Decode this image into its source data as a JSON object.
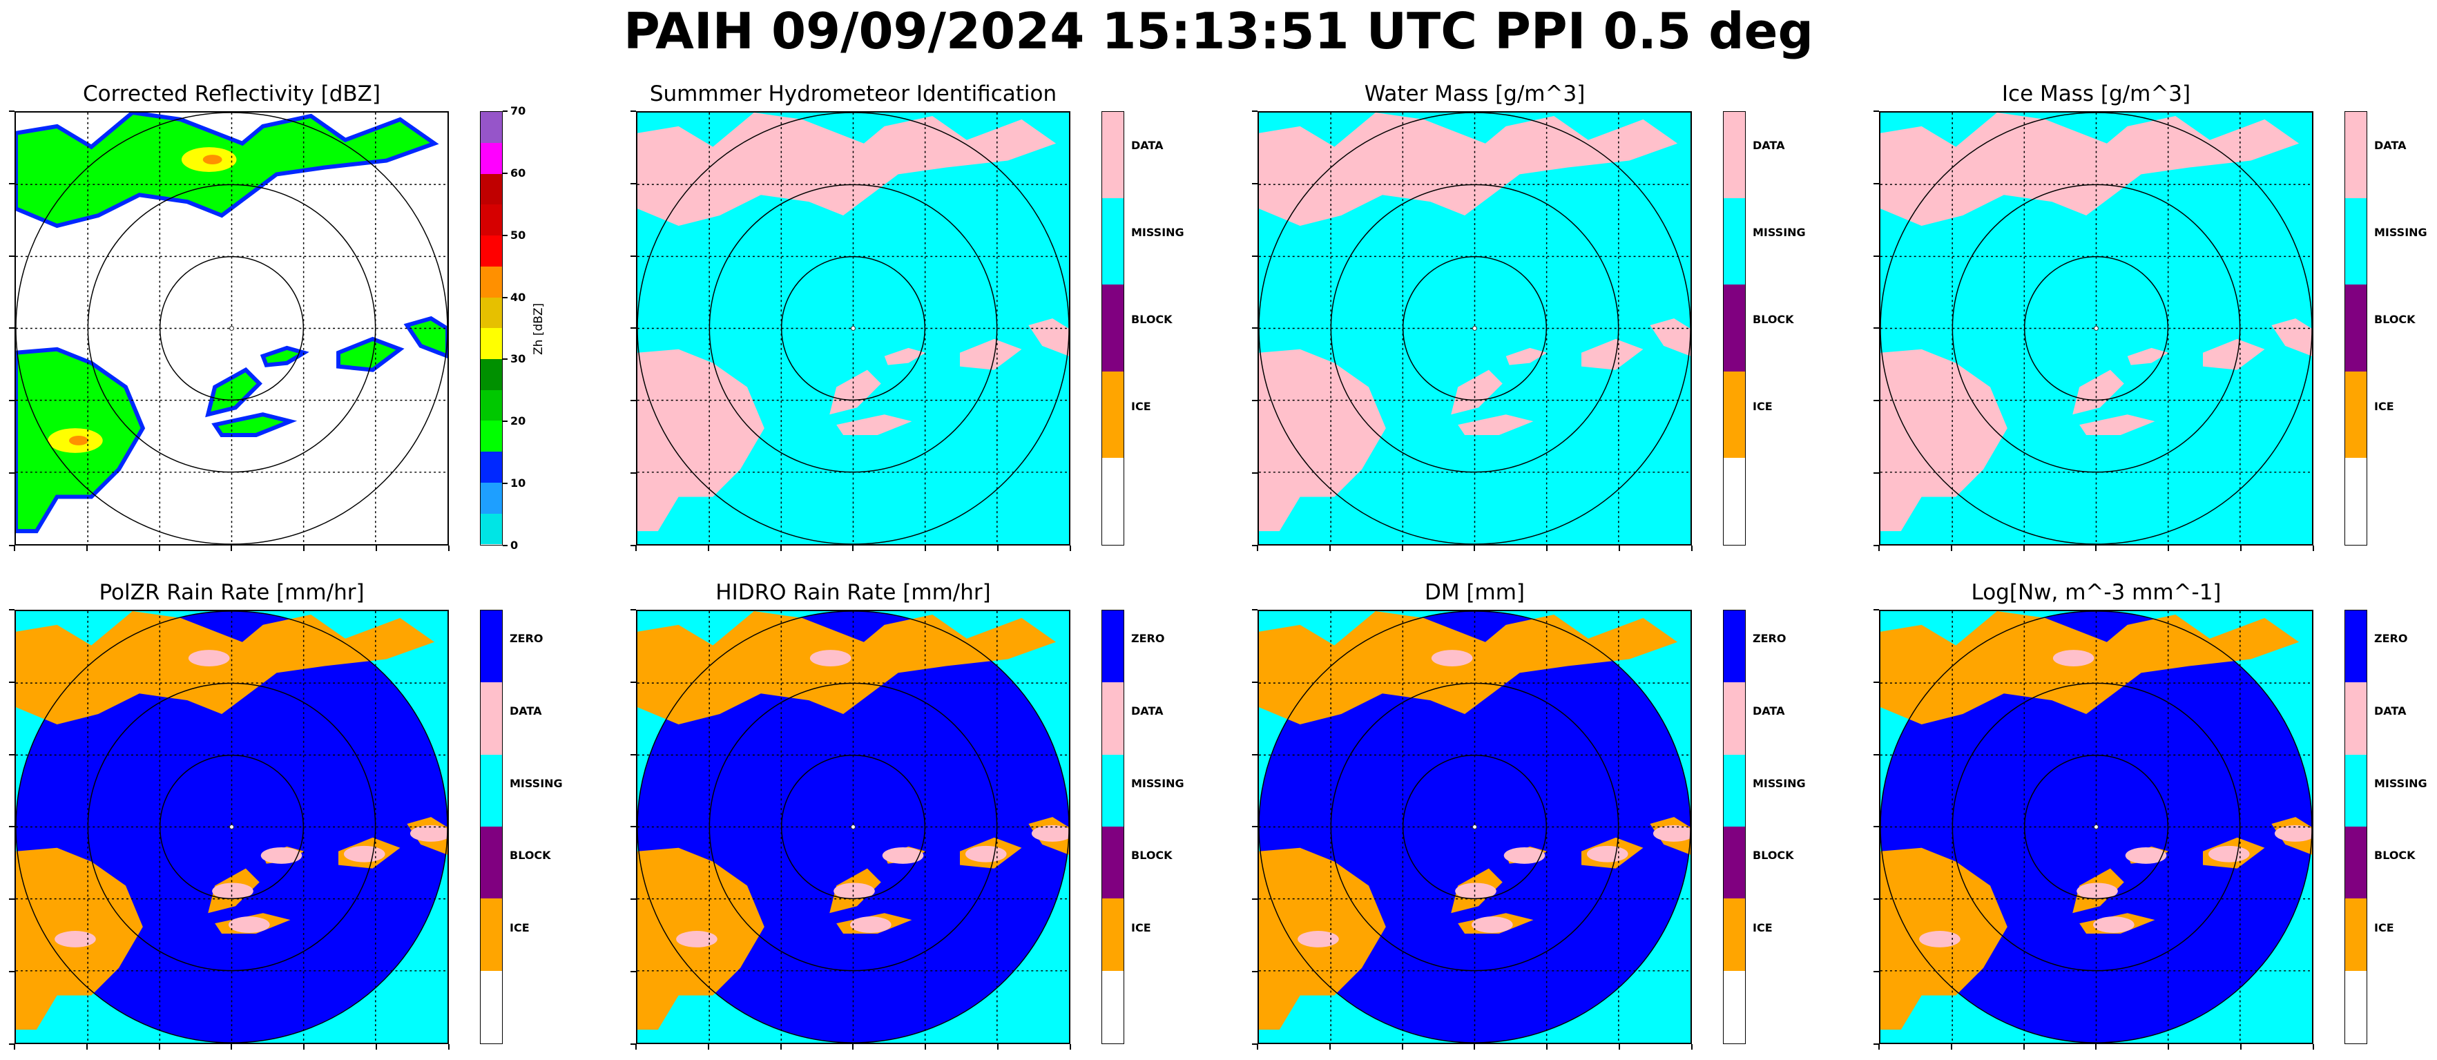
{
  "figure": {
    "suptitle": "PAIH 09/09/2024 15:13:51 UTC PPI 0.5 deg"
  },
  "chart_data": [
    {
      "type": "heatmap",
      "id": "reflectivity",
      "title": "Corrected Reflectivity [dBZ]",
      "colorbar_label": "Zh [dBZ]",
      "vmin": 0,
      "vmax": 70,
      "ticks": [
        "0",
        "10",
        "20",
        "30",
        "40",
        "50",
        "60",
        "70"
      ],
      "colors": [
        "#00e5e5",
        "#1e9fff",
        "#0028ff",
        "#00ff00",
        "#00c800",
        "#009000",
        "#ffff00",
        "#e6c000",
        "#ff9000",
        "#ff0000",
        "#d60000",
        "#c00000",
        "#ff00ff",
        "#9655c9"
      ],
      "background": "#ffffff",
      "grid": true
    },
    {
      "type": "heatmap",
      "id": "hid",
      "title": "Summmer Hydrometeor Identification",
      "categories": [
        "DATA",
        "MISSING",
        "BLOCK",
        "ICE"
      ],
      "category_colors": [
        "#ffc0cb",
        "#00ffff",
        "#800080",
        "#ffa500"
      ],
      "background": "#00ffff",
      "grid": true
    },
    {
      "type": "heatmap",
      "id": "water_mass",
      "title": "Water Mass [g/m^3]",
      "categories": [
        "DATA",
        "MISSING",
        "BLOCK",
        "ICE"
      ],
      "category_colors": [
        "#ffc0cb",
        "#00ffff",
        "#800080",
        "#ffa500"
      ],
      "background": "#00ffff",
      "grid": true
    },
    {
      "type": "heatmap",
      "id": "ice_mass",
      "title": "Ice Mass [g/m^3]",
      "categories": [
        "DATA",
        "MISSING",
        "BLOCK",
        "ICE"
      ],
      "category_colors": [
        "#ffc0cb",
        "#00ffff",
        "#800080",
        "#ffa500"
      ],
      "background": "#00ffff",
      "grid": true
    },
    {
      "type": "heatmap",
      "id": "polzr",
      "title": "PolZR Rain Rate [mm/hr]",
      "categories": [
        "ZERO",
        "DATA",
        "MISSING",
        "BLOCK",
        "ICE"
      ],
      "category_colors": [
        "#0000ff",
        "#ffc0cb",
        "#00ffff",
        "#800080",
        "#ffa500"
      ],
      "background": "#00ffff",
      "grid": true
    },
    {
      "type": "heatmap",
      "id": "hidro",
      "title": "HIDRO Rain Rate [mm/hr]",
      "categories": [
        "ZERO",
        "DATA",
        "MISSING",
        "BLOCK",
        "ICE"
      ],
      "category_colors": [
        "#0000ff",
        "#ffc0cb",
        "#00ffff",
        "#800080",
        "#ffa500"
      ],
      "background": "#00ffff",
      "grid": true
    },
    {
      "type": "heatmap",
      "id": "dm",
      "title": "DM [mm]",
      "categories": [
        "ZERO",
        "DATA",
        "MISSING",
        "BLOCK",
        "ICE"
      ],
      "category_colors": [
        "#0000ff",
        "#ffc0cb",
        "#00ffff",
        "#800080",
        "#ffa500"
      ],
      "background": "#00ffff",
      "grid": true
    },
    {
      "type": "heatmap",
      "id": "lognw",
      "title": "Log[Nw, m^-3 mm^-1]",
      "categories": [
        "ZERO",
        "DATA",
        "MISSING",
        "BLOCK",
        "ICE"
      ],
      "category_colors": [
        "#0000ff",
        "#ffc0cb",
        "#00ffff",
        "#800080",
        "#ffa500"
      ],
      "background": "#00ffff",
      "grid": true
    }
  ]
}
